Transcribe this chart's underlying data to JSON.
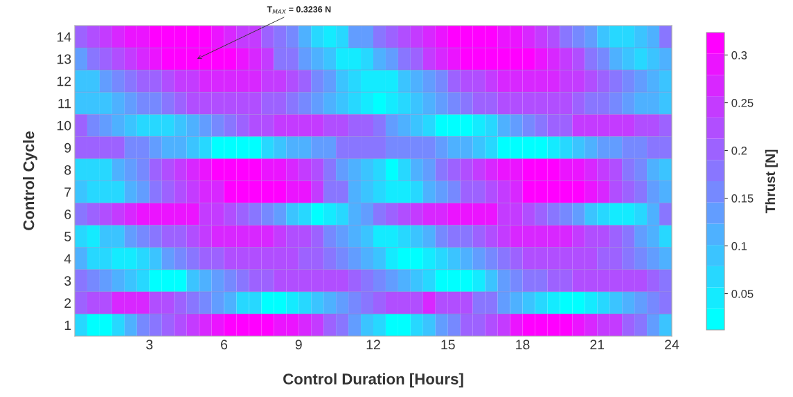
{
  "chart_data": {
    "type": "heatmap",
    "xlabel": "Control Duration [Hours]",
    "ylabel": "Control Cycle",
    "clabel": "Thrust [N]",
    "x": [
      0.25,
      0.75,
      1.25,
      1.75,
      2.25,
      2.75,
      3.25,
      3.75,
      4.25,
      4.75,
      5.25,
      5.75,
      6.25,
      6.75,
      7.25,
      7.75,
      8.25,
      8.75,
      9.25,
      9.75,
      10.25,
      10.75,
      11.25,
      11.75,
      12.25,
      12.75,
      13.25,
      13.75,
      14.25,
      14.75,
      15.25,
      15.75,
      16.25,
      16.75,
      17.25,
      17.75,
      18.25,
      18.75,
      19.25,
      19.75,
      20.25,
      20.75,
      21.25,
      21.75,
      22.25,
      22.75,
      23.25,
      23.75
    ],
    "xlim": [
      0,
      24
    ],
    "xticks": [
      3,
      6,
      9,
      12,
      15,
      18,
      21,
      24
    ],
    "y_categories": [
      "14",
      "13",
      "12",
      "11",
      "10",
      "9",
      "8",
      "7",
      "6",
      "5",
      "4",
      "3",
      "2",
      "1"
    ],
    "clim": [
      0.012,
      0.3236
    ],
    "cticks": [
      0.05,
      0.1,
      0.15,
      0.2,
      0.25,
      0.3
    ],
    "cells": [
      [
        0.21,
        0.23,
        0.25,
        0.27,
        0.29,
        0.29,
        0.31,
        0.31,
        0.31,
        0.31,
        0.31,
        0.29,
        0.27,
        0.25,
        0.25,
        0.2,
        0.18,
        0.16,
        0.11,
        0.07,
        0.05,
        0.07,
        0.13,
        0.14,
        0.19,
        0.21,
        0.23,
        0.25,
        0.27,
        0.29,
        0.31,
        0.31,
        0.31,
        0.31,
        0.29,
        0.29,
        0.27,
        0.25,
        0.23,
        0.19,
        0.16,
        0.14,
        0.09,
        0.07,
        0.07,
        0.09,
        0.11,
        0.17
      ],
      [
        0.14,
        0.17,
        0.21,
        0.23,
        0.25,
        0.27,
        0.29,
        0.31,
        0.31,
        0.31,
        0.31,
        0.31,
        0.31,
        0.29,
        0.27,
        0.25,
        0.19,
        0.17,
        0.14,
        0.11,
        0.09,
        0.05,
        0.05,
        0.07,
        0.11,
        0.14,
        0.18,
        0.2,
        0.25,
        0.27,
        0.29,
        0.31,
        0.31,
        0.31,
        0.31,
        0.31,
        0.31,
        0.29,
        0.27,
        0.25,
        0.23,
        0.18,
        0.16,
        0.11,
        0.09,
        0.07,
        0.09,
        0.11
      ],
      [
        0.09,
        0.09,
        0.14,
        0.16,
        0.18,
        0.2,
        0.21,
        0.23,
        0.25,
        0.25,
        0.27,
        0.27,
        0.27,
        0.27,
        0.27,
        0.25,
        0.25,
        0.23,
        0.2,
        0.16,
        0.14,
        0.09,
        0.07,
        0.05,
        0.05,
        0.05,
        0.09,
        0.11,
        0.14,
        0.16,
        0.21,
        0.23,
        0.23,
        0.25,
        0.27,
        0.27,
        0.27,
        0.27,
        0.27,
        0.25,
        0.25,
        0.23,
        0.21,
        0.18,
        0.16,
        0.14,
        0.11,
        0.09
      ],
      [
        0.09,
        0.09,
        0.09,
        0.11,
        0.14,
        0.16,
        0.16,
        0.18,
        0.21,
        0.23,
        0.23,
        0.23,
        0.23,
        0.23,
        0.23,
        0.21,
        0.21,
        0.18,
        0.16,
        0.14,
        0.11,
        0.09,
        0.07,
        0.05,
        0.03,
        0.05,
        0.07,
        0.09,
        0.11,
        0.14,
        0.16,
        0.18,
        0.21,
        0.21,
        0.23,
        0.23,
        0.23,
        0.23,
        0.23,
        0.23,
        0.21,
        0.18,
        0.18,
        0.16,
        0.14,
        0.11,
        0.11,
        0.09
      ],
      [
        0.21,
        0.16,
        0.14,
        0.11,
        0.09,
        0.07,
        0.07,
        0.07,
        0.09,
        0.11,
        0.14,
        0.16,
        0.18,
        0.21,
        0.23,
        0.23,
        0.25,
        0.25,
        0.25,
        0.25,
        0.23,
        0.23,
        0.21,
        0.2,
        0.17,
        0.14,
        0.11,
        0.09,
        0.07,
        0.03,
        0.03,
        0.03,
        0.05,
        0.07,
        0.11,
        0.14,
        0.16,
        0.19,
        0.21,
        0.21,
        0.25,
        0.25,
        0.25,
        0.25,
        0.25,
        0.23,
        0.23,
        0.21
      ],
      [
        0.2,
        0.2,
        0.2,
        0.2,
        0.16,
        0.16,
        0.14,
        0.11,
        0.11,
        0.09,
        0.07,
        0.03,
        0.03,
        0.03,
        0.03,
        0.07,
        0.09,
        0.11,
        0.11,
        0.14,
        0.14,
        0.17,
        0.17,
        0.17,
        0.19,
        0.16,
        0.16,
        0.16,
        0.16,
        0.14,
        0.11,
        0.11,
        0.09,
        0.07,
        0.03,
        0.03,
        0.03,
        0.03,
        0.05,
        0.07,
        0.09,
        0.11,
        0.14,
        0.14,
        0.16,
        0.16,
        0.19,
        0.19
      ],
      [
        0.07,
        0.07,
        0.07,
        0.11,
        0.14,
        0.16,
        0.2,
        0.23,
        0.25,
        0.27,
        0.29,
        0.31,
        0.31,
        0.31,
        0.31,
        0.29,
        0.29,
        0.27,
        0.25,
        0.23,
        0.18,
        0.14,
        0.11,
        0.09,
        0.07,
        0.03,
        0.07,
        0.11,
        0.14,
        0.18,
        0.21,
        0.23,
        0.25,
        0.27,
        0.29,
        0.29,
        0.31,
        0.31,
        0.31,
        0.29,
        0.29,
        0.27,
        0.25,
        0.23,
        0.18,
        0.16,
        0.11,
        0.09
      ],
      [
        0.09,
        0.07,
        0.07,
        0.07,
        0.11,
        0.14,
        0.18,
        0.2,
        0.23,
        0.25,
        0.27,
        0.27,
        0.31,
        0.31,
        0.31,
        0.31,
        0.31,
        0.29,
        0.29,
        0.25,
        0.19,
        0.17,
        0.11,
        0.09,
        0.07,
        0.05,
        0.05,
        0.07,
        0.11,
        0.14,
        0.16,
        0.2,
        0.21,
        0.23,
        0.25,
        0.27,
        0.31,
        0.31,
        0.31,
        0.31,
        0.31,
        0.29,
        0.27,
        0.23,
        0.21,
        0.19,
        0.14,
        0.11
      ],
      [
        0.19,
        0.21,
        0.23,
        0.25,
        0.27,
        0.29,
        0.29,
        0.29,
        0.29,
        0.29,
        0.25,
        0.25,
        0.23,
        0.21,
        0.19,
        0.16,
        0.14,
        0.09,
        0.07,
        0.03,
        0.05,
        0.07,
        0.11,
        0.14,
        0.19,
        0.21,
        0.23,
        0.25,
        0.27,
        0.27,
        0.29,
        0.29,
        0.29,
        0.29,
        0.25,
        0.25,
        0.23,
        0.21,
        0.17,
        0.16,
        0.14,
        0.09,
        0.07,
        0.05,
        0.05,
        0.07,
        0.11,
        0.17
      ],
      [
        0.07,
        0.05,
        0.09,
        0.09,
        0.14,
        0.16,
        0.17,
        0.21,
        0.21,
        0.23,
        0.25,
        0.27,
        0.27,
        0.27,
        0.27,
        0.27,
        0.25,
        0.23,
        0.23,
        0.21,
        0.16,
        0.14,
        0.11,
        0.09,
        0.05,
        0.05,
        0.07,
        0.09,
        0.11,
        0.16,
        0.17,
        0.19,
        0.21,
        0.23,
        0.25,
        0.27,
        0.27,
        0.27,
        0.27,
        0.27,
        0.25,
        0.23,
        0.23,
        0.21,
        0.18,
        0.14,
        0.11,
        0.07
      ],
      [
        0.11,
        0.07,
        0.07,
        0.05,
        0.05,
        0.07,
        0.09,
        0.14,
        0.16,
        0.19,
        0.21,
        0.21,
        0.23,
        0.23,
        0.23,
        0.23,
        0.23,
        0.23,
        0.21,
        0.21,
        0.18,
        0.16,
        0.14,
        0.11,
        0.09,
        0.05,
        0.03,
        0.03,
        0.05,
        0.07,
        0.09,
        0.11,
        0.14,
        0.16,
        0.19,
        0.21,
        0.23,
        0.23,
        0.23,
        0.23,
        0.23,
        0.23,
        0.21,
        0.21,
        0.18,
        0.16,
        0.14,
        0.11
      ],
      [
        0.19,
        0.16,
        0.14,
        0.11,
        0.09,
        0.07,
        0.03,
        0.03,
        0.03,
        0.09,
        0.11,
        0.14,
        0.16,
        0.19,
        0.21,
        0.21,
        0.23,
        0.23,
        0.23,
        0.23,
        0.23,
        0.23,
        0.21,
        0.19,
        0.16,
        0.14,
        0.11,
        0.09,
        0.07,
        0.03,
        0.03,
        0.03,
        0.05,
        0.09,
        0.14,
        0.16,
        0.17,
        0.19,
        0.21,
        0.21,
        0.23,
        0.23,
        0.23,
        0.23,
        0.23,
        0.23,
        0.21,
        0.19
      ],
      [
        0.21,
        0.23,
        0.23,
        0.27,
        0.27,
        0.27,
        0.23,
        0.23,
        0.2,
        0.18,
        0.16,
        0.14,
        0.11,
        0.07,
        0.07,
        0.03,
        0.03,
        0.05,
        0.07,
        0.09,
        0.11,
        0.14,
        0.16,
        0.19,
        0.21,
        0.23,
        0.23,
        0.23,
        0.27,
        0.23,
        0.23,
        0.23,
        0.19,
        0.17,
        0.14,
        0.11,
        0.09,
        0.07,
        0.05,
        0.03,
        0.03,
        0.05,
        0.07,
        0.09,
        0.11,
        0.14,
        0.16,
        0.19
      ],
      [
        0.07,
        0.03,
        0.03,
        0.07,
        0.11,
        0.16,
        0.18,
        0.21,
        0.23,
        0.25,
        0.27,
        0.29,
        0.31,
        0.31,
        0.31,
        0.31,
        0.29,
        0.29,
        0.27,
        0.25,
        0.21,
        0.17,
        0.14,
        0.09,
        0.07,
        0.03,
        0.03,
        0.07,
        0.09,
        0.14,
        0.16,
        0.2,
        0.21,
        0.23,
        0.25,
        0.29,
        0.31,
        0.31,
        0.31,
        0.31,
        0.29,
        0.27,
        0.25,
        0.25,
        0.21,
        0.19,
        0.14,
        0.09
      ]
    ],
    "annotations": [
      "T$_{MAX}$ = 0.3236 N"
    ]
  }
}
